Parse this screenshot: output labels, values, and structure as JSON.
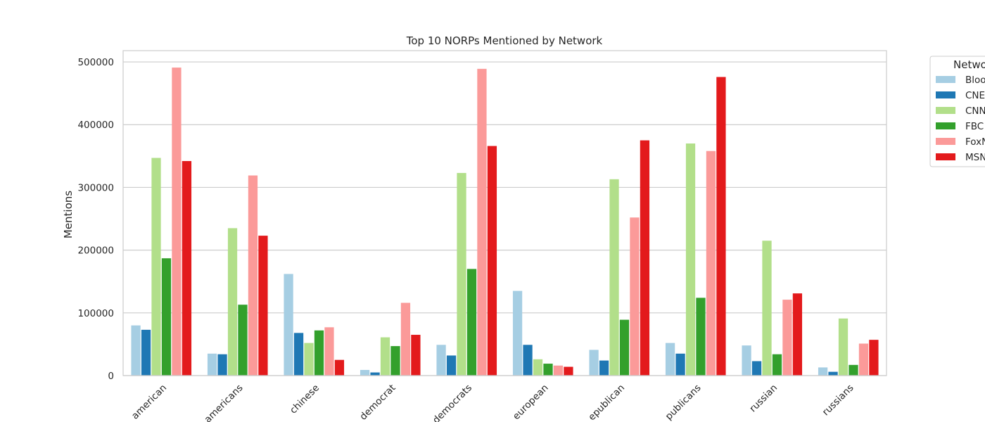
{
  "chart_data": {
    "type": "bar",
    "title": "Top 10 NORPs Mentioned by Network",
    "xlabel": "",
    "ylabel": "Mentions",
    "ylim": [
      0,
      518000
    ],
    "yticks": [
      0,
      100000,
      200000,
      300000,
      400000,
      500000
    ],
    "ytick_labels": [
      "0",
      "100000",
      "200000",
      "300000",
      "400000",
      "500000"
    ],
    "grid": true,
    "legend_placement": "outside-right-top",
    "legend_title": "Netwo",
    "categories": [
      "american",
      "americans",
      "chinese",
      "democrat",
      "democrats",
      "european",
      "republican",
      "republicans",
      "russian",
      "russians"
    ],
    "category_labels_visible": [
      "american",
      "americans",
      "chinese",
      "democrat",
      "democrats",
      "european",
      "epublican",
      "publicans",
      "russian",
      "russians"
    ],
    "series": [
      {
        "name": "Bloo",
        "color": "#a6cee3",
        "values": [
          80000,
          35000,
          162000,
          9000,
          49000,
          135000,
          41000,
          52000,
          48000,
          13000
        ]
      },
      {
        "name": "CNE",
        "color": "#1f78b4",
        "values": [
          73000,
          34000,
          68000,
          5000,
          32000,
          49000,
          24000,
          35000,
          23000,
          6000
        ]
      },
      {
        "name": "CNN",
        "color": "#b2df8a",
        "values": [
          347000,
          235000,
          52000,
          61000,
          323000,
          26000,
          313000,
          370000,
          215000,
          91000
        ]
      },
      {
        "name": "FBC",
        "color": "#33a02c",
        "values": [
          187000,
          113000,
          72000,
          47000,
          170000,
          19000,
          89000,
          124000,
          34000,
          17000
        ]
      },
      {
        "name": "FoxN",
        "color": "#fb9a99",
        "values": [
          491000,
          319000,
          77000,
          116000,
          489000,
          16000,
          252000,
          358000,
          121000,
          51000
        ]
      },
      {
        "name": "MSN",
        "color": "#e31a1c",
        "values": [
          342000,
          223000,
          25000,
          65000,
          366000,
          14000,
          375000,
          476000,
          131000,
          57000
        ]
      }
    ]
  }
}
